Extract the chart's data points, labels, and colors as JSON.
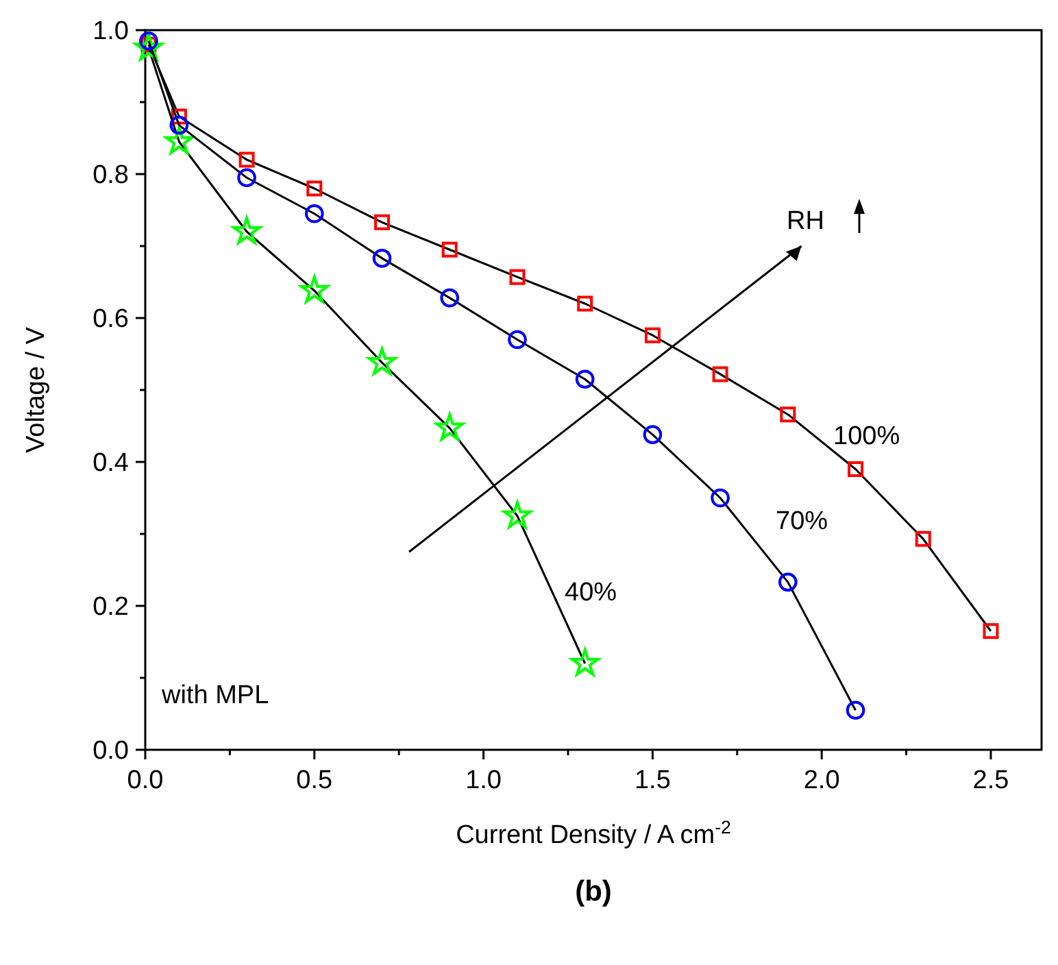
{
  "chart_data": {
    "type": "line",
    "title": "(b)",
    "xlabel": "Current Density / A cm$^{-2}$",
    "ylabel": "Voltage / V",
    "xlim": [
      0,
      2.65
    ],
    "ylim": [
      0,
      1
    ],
    "xticks": [
      {
        "value": 0,
        "label": "0.0"
      },
      {
        "value": 0.25,
        "label": null
      },
      {
        "value": 0.5,
        "label": "0.5"
      },
      {
        "value": 0.75,
        "label": null
      },
      {
        "value": 1,
        "label": "1.0"
      },
      {
        "value": 1.25,
        "label": null
      },
      {
        "value": 1.5,
        "label": "1.5"
      },
      {
        "value": 1.75,
        "label": null
      },
      {
        "value": 2,
        "label": "2.0"
      },
      {
        "value": 2.25,
        "label": null
      },
      {
        "value": 2.5,
        "label": "2.5"
      }
    ],
    "yticks": [
      {
        "value": 0,
        "label": "0.0"
      },
      {
        "value": 0.1,
        "label": null
      },
      {
        "value": 0.2,
        "label": "0.2"
      },
      {
        "value": 0.3,
        "label": null
      },
      {
        "value": 0.4,
        "label": "0.4"
      },
      {
        "value": 0.5,
        "label": null
      },
      {
        "value": 0.6,
        "label": "0.6"
      },
      {
        "value": 0.7,
        "label": null
      },
      {
        "value": 0.8,
        "label": "0.8"
      },
      {
        "value": 0.9,
        "label": null
      },
      {
        "value": 1,
        "label": "1.0"
      }
    ],
    "grid": false,
    "series": [
      {
        "color": "#ff0000",
        "marker": "square",
        "x": [
          0.01,
          0.1,
          0.3,
          0.5,
          0.7,
          0.9,
          1.1,
          1.3,
          1.5,
          1.7,
          1.9,
          2.1,
          2.3,
          2.5
        ],
        "values": [
          0.98,
          0.88,
          0.82,
          0.78,
          0.733,
          0.695,
          0.657,
          0.62,
          0.576,
          0.522,
          0.466,
          0.39,
          0.293,
          0.165
        ]
      },
      {
        "color": "#0000ff",
        "marker": "circle",
        "x": [
          0.01,
          0.1,
          0.3,
          0.5,
          0.7,
          0.9,
          1.1,
          1.3,
          1.5,
          1.7,
          1.9,
          2.1
        ],
        "values": [
          0.985,
          0.868,
          0.795,
          0.745,
          0.683,
          0.628,
          0.57,
          0.515,
          0.438,
          0.35,
          0.233,
          0.055
        ]
      },
      {
        "color": "#00ff00",
        "marker": "star",
        "x": [
          0.01,
          0.1,
          0.3,
          0.5,
          0.7,
          0.9,
          1.1,
          1.3
        ],
        "values": [
          0.975,
          0.845,
          0.72,
          0.638,
          0.538,
          0.447,
          0.325,
          0.12
        ]
      }
    ],
    "annotations": [
      "100%",
      "70%",
      "40%",
      "RH",
      "with MPL"
    ]
  }
}
